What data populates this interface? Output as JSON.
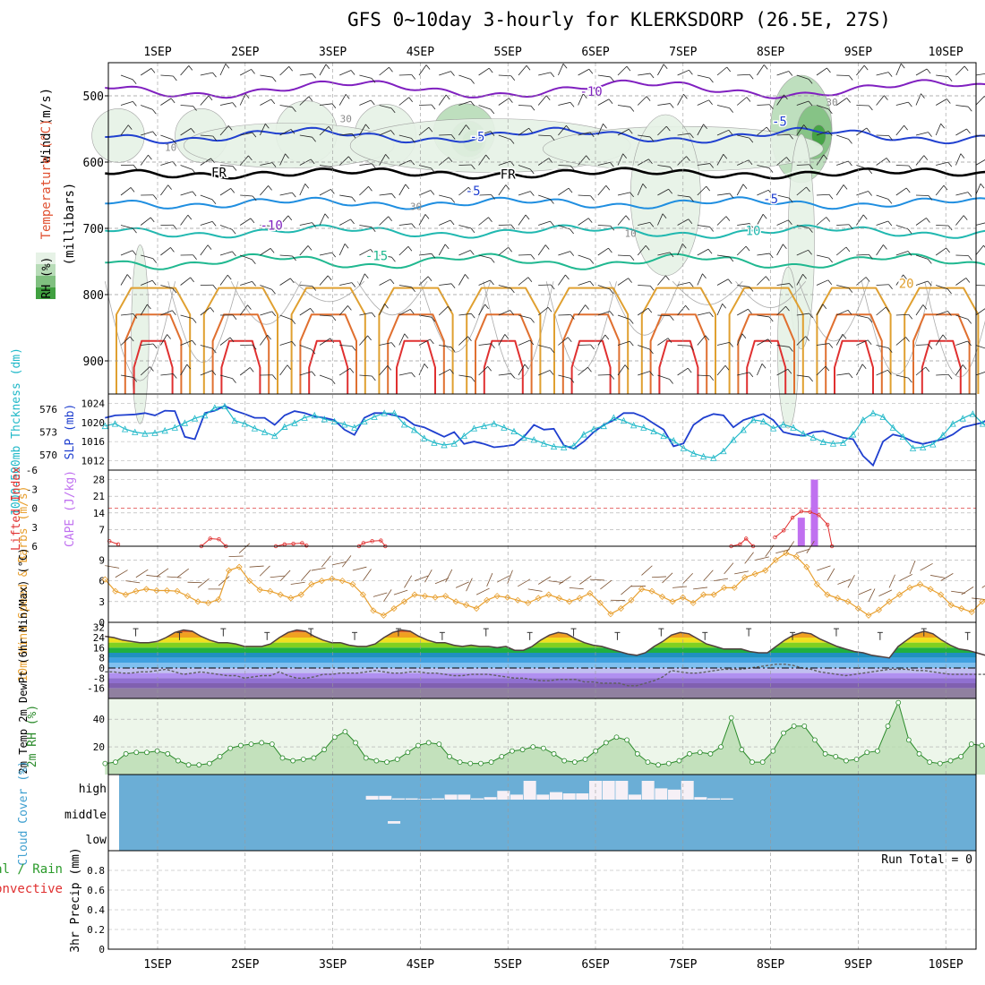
{
  "title": "GFS 0~10day 3-hourly for KLERKSDORP (26.5E, 27S)",
  "dates": [
    "1SEP",
    "2SEP",
    "3SEP",
    "4SEP",
    "5SEP",
    "6SEP",
    "7SEP",
    "8SEP",
    "9SEP",
    "10SEP"
  ],
  "chart_data": [
    {
      "type": "contour",
      "panel": "upper-air",
      "ylabel_parts": [
        "RH (%)",
        "Temperature (°C)",
        "Wind (m/s)",
        "(millibars)"
      ],
      "yticks": [
        500,
        600,
        700,
        800,
        900
      ],
      "ylim": [
        450,
        950
      ],
      "temperature_labels": [
        {
          "text": "-10",
          "x_day": 4.95,
          "p": 500
        },
        {
          "text": "-5",
          "x_day": 3.65,
          "p": 568
        },
        {
          "text": "-5",
          "x_day": 7.1,
          "p": 545
        },
        {
          "text": "FR",
          "x_day": 0.7,
          "p": 622
        },
        {
          "text": "FR",
          "x_day": 4.0,
          "p": 625
        },
        {
          "text": "-5",
          "x_day": 3.6,
          "p": 650
        },
        {
          "text": "-5",
          "x_day": 7.0,
          "p": 662
        },
        {
          "text": "-10",
          "x_day": 1.3,
          "p": 702
        },
        {
          "text": "10",
          "x_day": 6.8,
          "p": 710
        },
        {
          "text": "-15",
          "x_day": 2.5,
          "p": 748
        },
        {
          "text": "20",
          "x_day": 8.55,
          "p": 790
        }
      ],
      "rh_labels": [
        {
          "text": "30",
          "x_day": 2.15,
          "p": 540
        },
        {
          "text": "30",
          "x_day": 7.7,
          "p": 515
        },
        {
          "text": "30",
          "x_day": 2.95,
          "p": 672
        },
        {
          "text": "10",
          "x_day": 0.15,
          "p": 583
        },
        {
          "text": "10",
          "x_day": 5.4,
          "p": 713
        }
      ],
      "rh_legend_colors": [
        "#e6f2e6",
        "#b8dcb8",
        "#80c080",
        "#40a040"
      ]
    },
    {
      "type": "line",
      "panel": "thickness-slp",
      "ylabel_left": "1000-500mb Thckness (dm)",
      "ylabel_right": "SLP (mb)",
      "thickness_ticks": [
        576,
        573,
        570
      ],
      "slp_ticks": [
        1024,
        1020,
        1016,
        1012
      ],
      "series": [
        {
          "name": "SLP (mb)",
          "color": "#1f3fcf",
          "values": [
            1021,
            1021.5,
            1021.6,
            1021.7,
            1022,
            1021.5,
            1022.5,
            1022.4,
            1017,
            1016.5,
            1022,
            1022.5,
            1023.5,
            1022.5,
            1021.8,
            1021,
            1021,
            1019.5,
            1021.5,
            1022.4,
            1022,
            1021.3,
            1021,
            1020.5,
            1018.5,
            1017.4,
            1021,
            1022,
            1022,
            1021.5,
            1021,
            1019.5,
            1019,
            1018,
            1017,
            1018,
            1015.5,
            1016,
            1015.5,
            1014.8,
            1015,
            1015.3,
            1017,
            1019.5,
            1018.5,
            1018.7,
            1015.2,
            1014.5,
            1016,
            1018,
            1019.5,
            1020.5,
            1022,
            1022,
            1021.2,
            1019.8,
            1018.5,
            1015,
            1015.6,
            1019.5,
            1021,
            1021.8,
            1021.5,
            1019,
            1020.5,
            1021.2,
            1021.8,
            1020.5,
            1018,
            1017.5,
            1017.2,
            1018,
            1018.2,
            1017.5,
            1016.8,
            1016.5,
            1013,
            1011,
            1016,
            1017.5,
            1017,
            1016,
            1015.5,
            1016,
            1016.5,
            1017.5,
            1019,
            1019.5,
            1020,
            1021.5,
            1021.5
          ]
        },
        {
          "name": "1000-500mb Thickness (dm)",
          "color": "#20b8c8",
          "values": [
            573.8,
            574.1,
            573.4,
            573,
            572.8,
            572.9,
            573.2,
            573.6,
            574.2,
            574.8,
            575.2,
            576.2,
            576.4,
            574.5,
            574.1,
            573.5,
            573,
            572.5,
            573.7,
            574.2,
            574.9,
            575.2,
            574.7,
            574.4,
            574,
            573.6,
            574.4,
            575,
            575.5,
            575.5,
            574,
            573.3,
            572.2,
            571.6,
            571.3,
            571.5,
            572.5,
            573.5,
            573.8,
            574.1,
            573.6,
            573.1,
            572.3,
            572,
            571.5,
            571.1,
            571,
            571.2,
            572.7,
            573.4,
            573.8,
            574.9,
            574.5,
            573.9,
            573.6,
            573.1,
            572.5,
            571.9,
            570.9,
            570.2,
            569.8,
            569.6,
            570.5,
            572,
            573.3,
            574.6,
            574.4,
            573.5,
            574,
            573.6,
            572.8,
            572.3,
            571.7,
            571.5,
            571.6,
            572.7,
            574.6,
            575.5,
            575,
            573.6,
            572.4,
            570.9,
            571,
            571.4,
            572.6,
            574.1,
            574.8,
            575.4,
            574.1,
            573.3,
            573.2
          ]
        }
      ]
    },
    {
      "type": "bar",
      "panel": "cape-li",
      "ylabel_left": "Lifted Index",
      "ylabel_right": "CAPE (J/kg)",
      "li_ticks": [
        "-6",
        "-3",
        "0",
        "3",
        "6"
      ],
      "cape_ticks": [
        28,
        21,
        14,
        7
      ],
      "cape_bars": [
        {
          "x_day": 7.35,
          "value": 12
        },
        {
          "x_day": 7.5,
          "value": 28
        }
      ],
      "lifted_index_segments": [
        [
          [
            -0.55,
            5.2
          ],
          [
            -0.45,
            5.7
          ]
        ],
        [
          [
            0.5,
            6
          ],
          [
            0.6,
            4.8
          ],
          [
            0.7,
            4.9
          ],
          [
            0.78,
            6
          ]
        ],
        [
          [
            1.35,
            6
          ],
          [
            1.45,
            5.7
          ],
          [
            1.55,
            5.6
          ],
          [
            1.65,
            5.5
          ],
          [
            1.7,
            5.9
          ]
        ],
        [
          [
            2.3,
            6
          ],
          [
            2.35,
            5.5
          ],
          [
            2.45,
            5.2
          ],
          [
            2.55,
            5.1
          ],
          [
            2.6,
            6
          ]
        ],
        [
          [
            6.55,
            6
          ],
          [
            6.65,
            5.7
          ],
          [
            6.72,
            4.8
          ],
          [
            6.8,
            6
          ]
        ],
        [
          [
            7.05,
            4.6
          ],
          [
            7.15,
            3.5
          ],
          [
            7.25,
            1.5
          ],
          [
            7.35,
            0.5
          ],
          [
            7.45,
            0.6
          ],
          [
            7.55,
            1.1
          ],
          [
            7.65,
            2.6
          ],
          [
            7.7,
            6
          ]
        ]
      ]
    },
    {
      "type": "line",
      "panel": "10m-wind",
      "ylabel": "10m Wind Speed & Barbs (m/s)",
      "yticks": [
        0,
        3,
        6,
        9
      ],
      "series": [
        {
          "name": "Speed",
          "color": "#e8a030",
          "values": [
            6.2,
            4.5,
            4,
            4.5,
            4.8,
            4.6,
            4.6,
            4.5,
            3.8,
            3,
            2.8,
            3.3,
            7.5,
            8,
            6,
            4.7,
            4.5,
            4,
            3.5,
            4,
            5.5,
            6,
            6.3,
            6,
            5.5,
            4,
            1.7,
            1,
            2,
            3,
            4,
            3.8,
            3.6,
            3.8,
            3,
            2.5,
            2,
            3.2,
            3.8,
            3.6,
            3.2,
            2.8,
            3.5,
            4,
            3.5,
            3,
            3.5,
            4.2,
            2.8,
            1.2,
            2,
            3.2,
            4.8,
            4.5,
            3.7,
            3,
            3.6,
            2.8,
            4,
            4,
            5,
            5,
            6.5,
            7,
            7.5,
            9,
            10,
            9.5,
            8,
            5.5,
            4,
            3.5,
            3,
            2,
            1,
            1.8,
            3,
            4,
            5,
            5.5,
            4.8,
            4,
            2.5,
            2,
            1.5,
            3,
            4,
            6
          ]
        }
      ]
    },
    {
      "type": "line",
      "panel": "2m-temp",
      "ylabel": "2m Temp 2m DewPt (6hr Min/Max) (°C)",
      "yticks": [
        32,
        24,
        16,
        8,
        0,
        -8,
        -16
      ],
      "series": [
        {
          "name": "2m Temp",
          "color": "#504040",
          "values": [
            25,
            24,
            22,
            21,
            20,
            20,
            21,
            24,
            28,
            30,
            29,
            25,
            22,
            20,
            20,
            19,
            17,
            17,
            17,
            19,
            24,
            28,
            30,
            29,
            25,
            22,
            20,
            20,
            18,
            17,
            17,
            19,
            24,
            28,
            30,
            29,
            25,
            22,
            20,
            20,
            18,
            17,
            18,
            17,
            17,
            16,
            17,
            14,
            14,
            17,
            22,
            26,
            28,
            27,
            23,
            20,
            18,
            17,
            15,
            13,
            11,
            10,
            12,
            17,
            21,
            26,
            28,
            27,
            23,
            19,
            17,
            15,
            15,
            15,
            13,
            12,
            12,
            17,
            22,
            26,
            28,
            27,
            23,
            20,
            17,
            15,
            13,
            12,
            10,
            9,
            8,
            17,
            22,
            27,
            29,
            27,
            22,
            18,
            15,
            14,
            12,
            10,
            10,
            16
          ]
        },
        {
          "name": "2m DewPt",
          "color": "#808080",
          "values": [
            -3,
            -3,
            -4,
            -4,
            -3,
            -3,
            -2,
            -1,
            -3,
            -5,
            -4,
            -3,
            -4,
            -5,
            -6,
            -6,
            -8,
            -7,
            -6,
            -6,
            -3,
            -6,
            -8,
            -8,
            -7,
            -5,
            -5,
            -4,
            -4,
            -4,
            -3,
            -2,
            -3,
            -4,
            -4,
            -3,
            -3,
            -4,
            -4,
            -5,
            -6,
            -6,
            -5,
            -5,
            -5,
            -6,
            -7,
            -8,
            -8,
            -9,
            -10,
            -10,
            -9,
            -9,
            -9,
            -11,
            -11,
            -12,
            -12,
            -12,
            -14,
            -14,
            -12,
            -10,
            -7,
            -2,
            -3,
            -4,
            -4,
            -3,
            -2,
            -1,
            -1,
            -1,
            0,
            1,
            2,
            3,
            3,
            2,
            0,
            -1,
            -3,
            -4,
            -5,
            -6,
            -5,
            -4,
            -3,
            -2,
            -1,
            -1,
            -1,
            -2,
            -2,
            -3,
            -4,
            -5,
            -5,
            -5,
            -5,
            -5,
            -3,
            -2
          ]
        }
      ]
    },
    {
      "type": "area",
      "panel": "2m-rh",
      "ylabel": "2m RH (%)",
      "yticks": [
        40,
        20
      ],
      "series": [
        {
          "name": "2m RH",
          "color": "#2a8a2a",
          "values": [
            8,
            9,
            15,
            16,
            16,
            17,
            15,
            10,
            7,
            7,
            8,
            13,
            19,
            21,
            22,
            23,
            22,
            12,
            10,
            11,
            12,
            18,
            27,
            31,
            23,
            12,
            10,
            9,
            11,
            16,
            21,
            23,
            22,
            13,
            9,
            8,
            8,
            9,
            13,
            17,
            18,
            20,
            19,
            15,
            10,
            9,
            11,
            17,
            23,
            27,
            25,
            15,
            9,
            7,
            8,
            10,
            15,
            16,
            15,
            20,
            41,
            18,
            9,
            9,
            17,
            30,
            35,
            35,
            25,
            15,
            13,
            10,
            11,
            16,
            17,
            35,
            52,
            25,
            15,
            9,
            8,
            10,
            13,
            22,
            21,
            19,
            28
          ]
        }
      ]
    },
    {
      "type": "bar",
      "panel": "cloud-cover",
      "ylabel": "Cloud Cover (%)",
      "levels": [
        "high",
        "middle",
        "low"
      ],
      "high_cloud": [
        {
          "x_day": 2.45,
          "value": 15
        },
        {
          "x_day": 2.6,
          "value": 15
        },
        {
          "x_day": 2.75,
          "value": 5
        },
        {
          "x_day": 2.9,
          "value": 5
        },
        {
          "x_day": 3.05,
          "value": 3
        },
        {
          "x_day": 3.2,
          "value": 5
        },
        {
          "x_day": 3.35,
          "value": 20
        },
        {
          "x_day": 3.5,
          "value": 20
        },
        {
          "x_day": 3.65,
          "value": 5
        },
        {
          "x_day": 3.8,
          "value": 10
        },
        {
          "x_day": 3.95,
          "value": 35
        },
        {
          "x_day": 4.1,
          "value": 20
        },
        {
          "x_day": 4.25,
          "value": 75
        },
        {
          "x_day": 4.4,
          "value": 20
        },
        {
          "x_day": 4.55,
          "value": 30
        },
        {
          "x_day": 4.7,
          "value": 25
        },
        {
          "x_day": 4.85,
          "value": 25
        },
        {
          "x_day": 5.0,
          "value": 75
        },
        {
          "x_day": 5.15,
          "value": 75
        },
        {
          "x_day": 5.3,
          "value": 75
        },
        {
          "x_day": 5.45,
          "value": 20
        },
        {
          "x_day": 5.6,
          "value": 75
        },
        {
          "x_day": 5.75,
          "value": 45
        },
        {
          "x_day": 5.9,
          "value": 40
        },
        {
          "x_day": 6.05,
          "value": 75
        },
        {
          "x_day": 6.2,
          "value": 10
        },
        {
          "x_day": 6.35,
          "value": 5
        },
        {
          "x_day": 6.5,
          "value": 5
        }
      ],
      "middle_cloud": [
        {
          "x_day": 2.7,
          "value": 10
        }
      ]
    },
    {
      "type": "bar",
      "panel": "precip",
      "ylabel": "3hr Precip (mm)",
      "label_total": "Total / Rain",
      "label_convective": "Convective",
      "yticks": [
        "0.8",
        "0.6",
        "0.4",
        "0.2",
        "0"
      ],
      "run_total": "Run Total = 0",
      "values": []
    }
  ]
}
